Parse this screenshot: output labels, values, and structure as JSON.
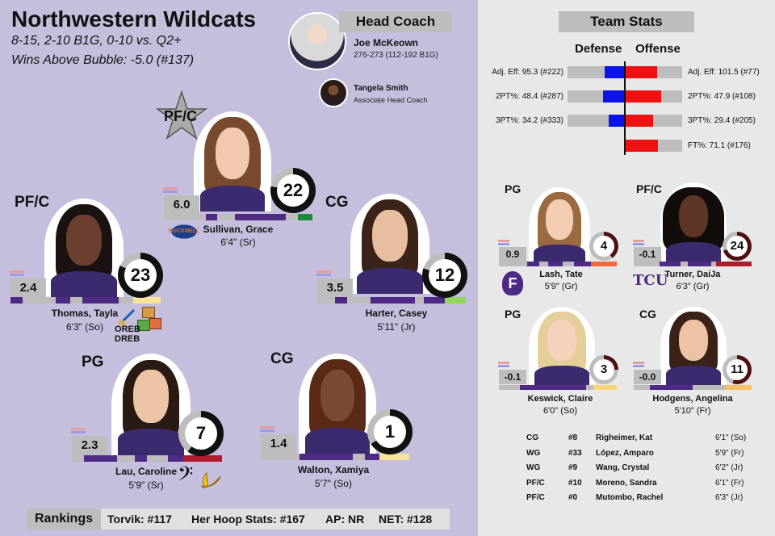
{
  "team": {
    "name": "Northwestern Wildcats",
    "record": "8-15, 2-10 B1G, 0-10 vs. Q2+",
    "wab": "Wins Above Bubble: -5.0 (#137)"
  },
  "coaches": {
    "header": "Head Coach",
    "head": {
      "name": "Joe McKeown",
      "record": "276-273 (112-192 B1G)"
    },
    "assistant": {
      "name": "Tangela Smith",
      "title": "Associate Head Coach"
    }
  },
  "starters": [
    {
      "id": "sullivan",
      "pos": "PF/C",
      "rating": "6.0",
      "number": "22",
      "name": "Sullivan, Grace",
      "info": "6'4\" (Sr)",
      "logo": "BUCKNELL"
    },
    {
      "id": "thomas",
      "pos": "PF/C",
      "rating": "2.4",
      "number": "23",
      "name": "Thomas, Tayla",
      "info": "6'3\" (So)",
      "badge": "OREB DREB"
    },
    {
      "id": "harter",
      "pos": "CG",
      "rating": "3.5",
      "number": "12",
      "name": "Harter, Casey",
      "info": "5'11\" (Jr)"
    },
    {
      "id": "lau",
      "pos": "PG",
      "rating": "2.3",
      "number": "7",
      "name": "Lau, Caroline",
      "info": "5'9\" (Sr)"
    },
    {
      "id": "walton",
      "pos": "CG",
      "rating": "1.4",
      "number": "1",
      "name": "Walton, Xamiya",
      "info": "5'7\" (So)"
    }
  ],
  "team_stats": {
    "header": "Team Stats",
    "defense_label": "Defense",
    "offense_label": "Offense",
    "rows": [
      {
        "def": "Adj. Eff: 95.3 (#222)",
        "off": "Adj. Eff: 101.5 (#77)"
      },
      {
        "def": "2PT%: 48.4 (#287)",
        "off": "2PT%: 47.9 (#108)"
      },
      {
        "def": "3PT%: 34.2 (#333)",
        "off": "3PT%: 29.4 (#205)"
      },
      {
        "def": "",
        "off": "FT%: 71.1 (#176)"
      }
    ]
  },
  "bench_featured": [
    {
      "id": "lash",
      "pos": "PG",
      "rating": "0.9",
      "number": "4",
      "name": "Lash, Tate",
      "info": "5'9\" (Gr)",
      "logo": "F"
    },
    {
      "id": "turner",
      "pos": "PF/C",
      "rating": "-0.1",
      "number": "24",
      "name": "Turner, DaiJa",
      "info": "6'3\" (Gr)",
      "logo": "TCU"
    },
    {
      "id": "keswick",
      "pos": "PG",
      "rating": "-0.1",
      "number": "3",
      "name": "Keswick, Claire",
      "info": "6'0\" (So)"
    },
    {
      "id": "hodgens",
      "pos": "CG",
      "rating": "-0.0",
      "number": "11",
      "name": "Hodgens, Angelina",
      "info": "5'10\" (Fr)"
    }
  ],
  "bench_list": [
    {
      "pos": "CG",
      "num": "#8",
      "name": "Righeimer, Kat",
      "info": "6'1\" (So)"
    },
    {
      "pos": "WG",
      "num": "#33",
      "name": "López, Amparo",
      "info": "5'9\" (Fr)"
    },
    {
      "pos": "WG",
      "num": "#9",
      "name": "Wang, Crystal",
      "info": "6'2\" (Jr)"
    },
    {
      "pos": "PF/C",
      "num": "#10",
      "name": "Moreno, Sandra",
      "info": "6'1\" (Fr)"
    },
    {
      "pos": "PF/C",
      "num": "#0",
      "name": "Mutombo, Rachel",
      "info": "6'3\" (Jr)"
    }
  ],
  "rankings": {
    "label": "Rankings",
    "torvik": "Torvik: #117",
    "hhs": "Her Hoop Stats: #167",
    "ap": "AP: NR",
    "net": "NET: #128"
  },
  "colors": {
    "left_bg": "#c6bedd",
    "right_bg": "#e8e8e8",
    "purple": "#4e2a84",
    "defense": "#0a14e6",
    "offense": "#ee1111"
  }
}
